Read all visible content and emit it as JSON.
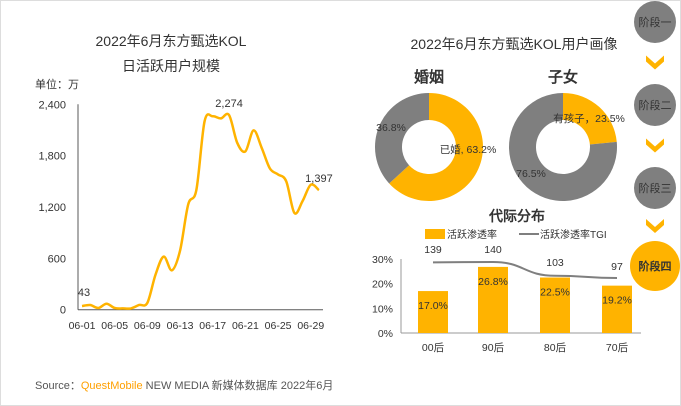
{
  "colors": {
    "accent": "#FFB300",
    "gray": "#7f7f7f",
    "axis": "#595959"
  },
  "chart_data": [
    {
      "type": "line",
      "title": "2022年6月东方甄选KOL",
      "subtitle": "日活跃用户规模",
      "ylabel": "单位：万",
      "ylim": [
        0,
        2400
      ],
      "yticks": [
        "0",
        "600",
        "1,200",
        "1,800",
        "2,400"
      ],
      "xticks": [
        "06-01",
        "06-05",
        "06-09",
        "06-13",
        "06-17",
        "06-21",
        "06-25",
        "06-29"
      ],
      "x": [
        "06-01",
        "06-02",
        "06-03",
        "06-04",
        "06-05",
        "06-06",
        "06-07",
        "06-08",
        "06-09",
        "06-10",
        "06-11",
        "06-12",
        "06-13",
        "06-14",
        "06-15",
        "06-16",
        "06-17",
        "06-18",
        "06-19",
        "06-20",
        "06-21",
        "06-22",
        "06-23",
        "06-24",
        "06-25",
        "06-26",
        "06-27",
        "06-28",
        "06-29",
        "06-30"
      ],
      "values": [
        43,
        55,
        20,
        70,
        20,
        15,
        15,
        55,
        80,
        410,
        620,
        460,
        690,
        1230,
        1400,
        2200,
        2260,
        2235,
        2274,
        1950,
        1850,
        2095,
        1890,
        1650,
        1580,
        1500,
        1130,
        1270,
        1460,
        1397
      ],
      "labels": [
        {
          "day": 0,
          "text": "43"
        },
        {
          "day": 18,
          "text": "2,274"
        },
        {
          "day": 29,
          "text": "1,397"
        }
      ]
    },
    {
      "type": "pie",
      "title": "婚姻",
      "slices": [
        {
          "name": "已婚",
          "value": 63.2,
          "label": "已婚, 63.2%",
          "color": "#FFB300"
        },
        {
          "name": "",
          "value": 36.8,
          "label": "36.8%",
          "color": "#7f7f7f"
        }
      ]
    },
    {
      "type": "pie",
      "title": "子女",
      "slices": [
        {
          "name": "有孩子",
          "value": 23.5,
          "label": "有孩子，23.5%",
          "color": "#FFB300"
        },
        {
          "name": "",
          "value": 76.5,
          "label": "76.5%",
          "color": "#7f7f7f"
        }
      ]
    },
    {
      "type": "bar",
      "title": "代际分布",
      "categories": [
        "00后",
        "90后",
        "80后",
        "70后"
      ],
      "series": [
        {
          "name": "活跃渗透率",
          "values": [
            17.0,
            26.8,
            22.5,
            19.2
          ],
          "labels": [
            "17.0%",
            "26.8%",
            "22.5%",
            "19.2%"
          ]
        },
        {
          "name": "活跃渗透率TGI",
          "type": "line",
          "values": [
            139,
            140,
            103,
            97
          ],
          "labels": [
            "139",
            "140",
            "103",
            "97"
          ]
        }
      ],
      "yticks": [
        "0%",
        "10%",
        "20%",
        "30%"
      ],
      "ylim": [
        0,
        30
      ],
      "legend": "top"
    }
  ],
  "portrait_title": "2022年6月东方甄选KOL用户画像",
  "stages": [
    {
      "label": "阶段一",
      "active": false
    },
    {
      "label": "阶段二",
      "active": false
    },
    {
      "label": "阶段三",
      "active": false
    },
    {
      "label": "阶段四",
      "active": true
    }
  ],
  "footer": {
    "prefix": "Source：",
    "brand": "QuestMobile",
    "rest": " NEW MEDIA 新媒体数据库 2022年6月"
  }
}
